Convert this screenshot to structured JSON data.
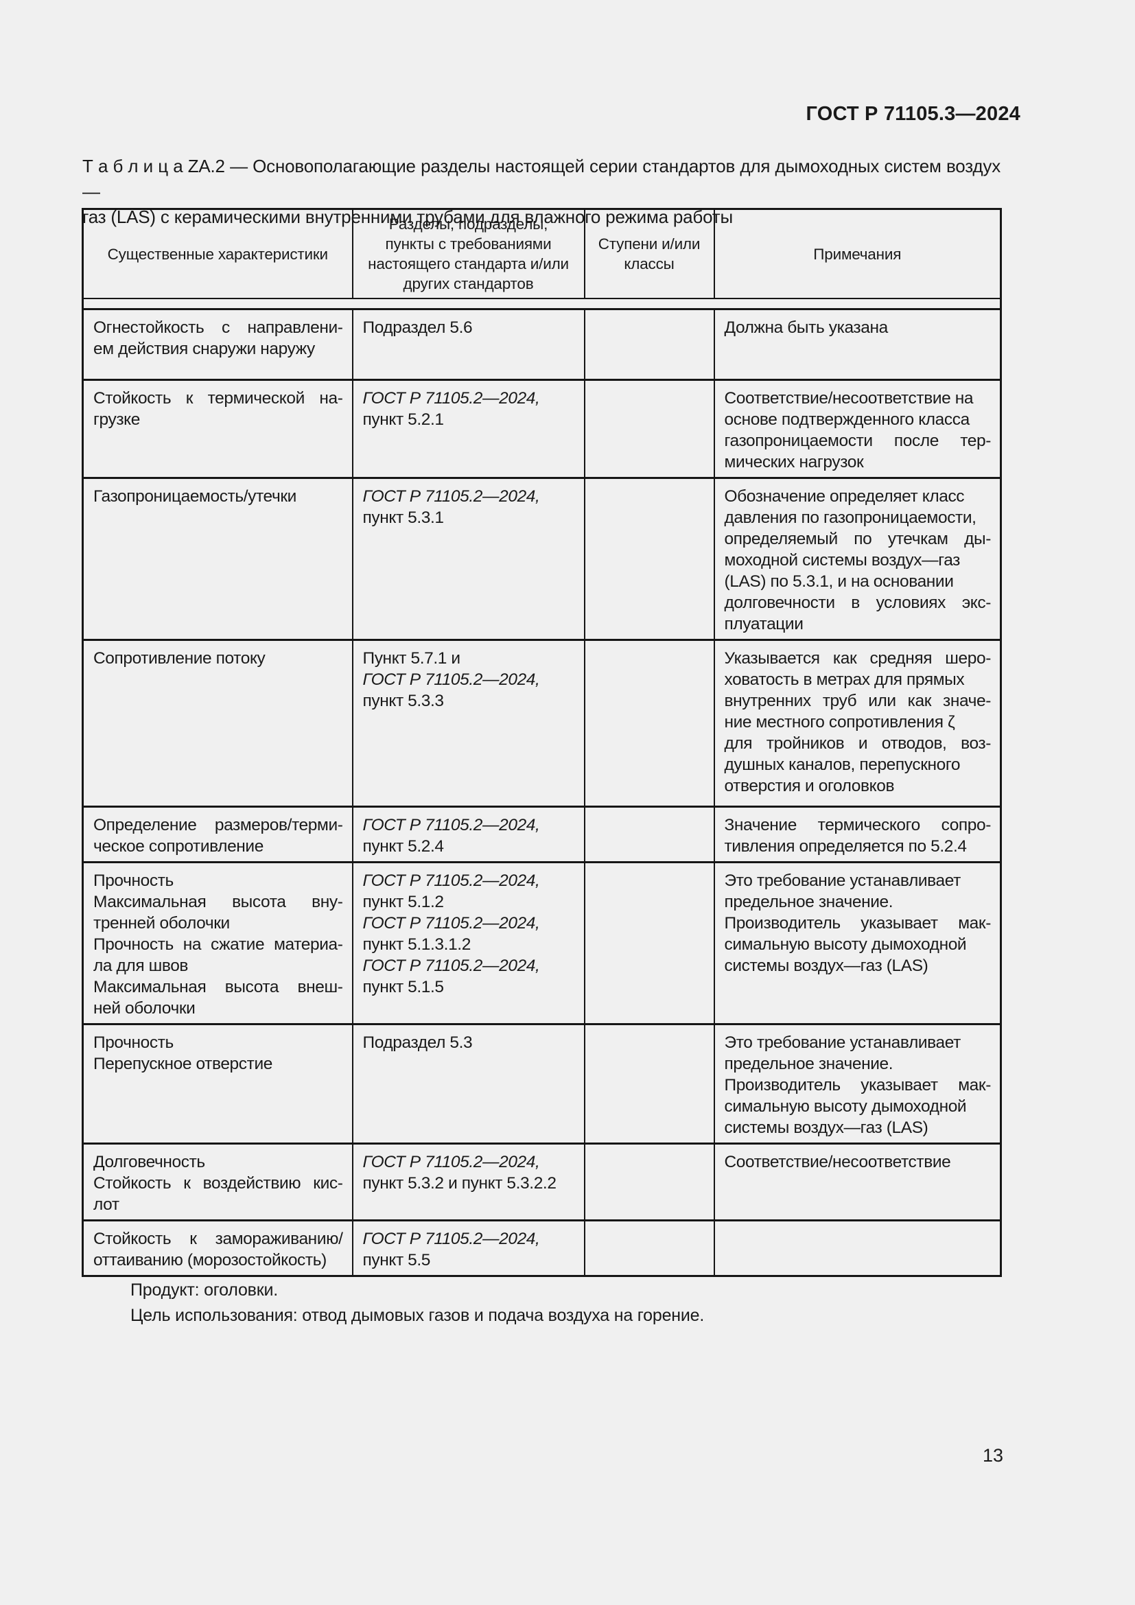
{
  "colors": {
    "page_background": "#f0f0f0",
    "ink": "#1a1a1a",
    "border": "#161616"
  },
  "page": {
    "doc_code": "ГОСТ Р 71105.3—2024",
    "page_number": "13",
    "footer_lines": [
      "Продукт: оголовки.",
      "Цель использования: отвод дымовых газов и подача воздуха на горение."
    ]
  },
  "table": {
    "caption_lines": [
      "Т а б л и ц а  ZA.2 — Основополагающие разделы настоящей серии стандартов для дымоходных систем воздух—",
      "газ (LAS) с керамическими внутренними трубами для влажного режима работы"
    ],
    "columns": [
      {
        "label": "Существенные характеристики"
      },
      {
        "label_lines": [
          "Разделы, подразделы,",
          "пункты с требованиями",
          "настоящего стандарта и/или",
          "других стандартов"
        ]
      },
      {
        "label_lines": [
          "Ступени и/или",
          "классы"
        ]
      },
      {
        "label": "Примечания"
      }
    ],
    "rows": [
      {
        "characteristics": [
          "Огнестойкость с направлени-",
          "ем действия снаружи наружу"
        ],
        "refs": [
          "Подраздел 5.6"
        ],
        "classes": "",
        "notes": [
          "Должна быть указана"
        ]
      },
      {
        "characteristics": [
          "Стойкость к термической на-",
          "грузке"
        ],
        "refs": [
          {
            "t": "ГОСТ Р 71105.2—2024,",
            "it": true
          },
          "пункт 5.2.1"
        ],
        "classes": "",
        "notes": [
          "Соответствие/несоответствие на",
          "основе подтвержденного класса",
          "газопроницаемости после тер-",
          "мических нагрузок"
        ]
      },
      {
        "characteristics": [
          "Газопроницаемость/утечки"
        ],
        "refs": [
          {
            "t": "ГОСТ Р 71105.2—2024,",
            "it": true
          },
          "пункт 5.3.1"
        ],
        "classes": "",
        "notes": [
          "Обозначение определяет класс",
          "давления по газопроницаемости,",
          "определяемый по утечкам ды-",
          "моходной системы воздух—газ",
          "(LAS) по 5.3.1, и на основании",
          "долговечности в условиях экс-",
          "плуатации"
        ]
      },
      {
        "characteristics": [
          "Сопротивление потоку"
        ],
        "refs": [
          "Пункт 5.7.1 и",
          {
            "t": "ГОСТ Р 71105.2—2024,",
            "it": true
          },
          "пункт 5.3.3"
        ],
        "classes": "",
        "notes": [
          "Указывается как средняя шеро-",
          "ховатость в метрах для прямых",
          "внутренних труб или как значе-",
          "ние местного сопротивления ζ",
          "для тройников и отводов, воз-",
          "душных каналов, перепускного",
          "отверстия и оголовков"
        ]
      },
      {
        "characteristics": [
          "Определение размеров/терми-",
          "ческое сопротивление"
        ],
        "refs": [
          {
            "t": "ГОСТ Р 71105.2—2024,",
            "it": true
          },
          "пункт 5.2.4"
        ],
        "classes": "",
        "notes": [
          "Значение термического сопро-",
          "тивления определяется по 5.2.4"
        ]
      },
      {
        "characteristics": [
          "Прочность",
          "Максимальная высота вну-",
          "тренней оболочки",
          "Прочность на сжатие материа-",
          "ла для швов",
          "Максимальная высота внеш-",
          "ней оболочки"
        ],
        "refs": [
          {
            "t": "ГОСТ Р 71105.2—2024,",
            "it": true
          },
          "пункт 5.1.2",
          {
            "t": "ГОСТ Р 71105.2—2024,",
            "it": true
          },
          "пункт 5.1.3.1.2",
          {
            "t": "ГОСТ Р 71105.2—2024,",
            "it": true
          },
          "пункт 5.1.5"
        ],
        "classes": "",
        "notes": [
          "Это требование устанавливает",
          "предельное значение.",
          "Производитель указывает мак-",
          "симальную высоту дымоходной",
          "системы воздух—газ (LAS)"
        ]
      },
      {
        "characteristics": [
          "Прочность",
          "Перепускное отверстие"
        ],
        "refs": [
          "Подраздел 5.3"
        ],
        "classes": "",
        "notes": [
          "Это требование устанавливает",
          "предельное значение.",
          "Производитель указывает мак-",
          "симальную высоту дымоходной",
          "системы воздух—газ (LAS)"
        ]
      },
      {
        "characteristics": [
          "Долговечность",
          "Стойкость к воздействию кис-",
          "лот"
        ],
        "refs": [
          {
            "t": "ГОСТ Р 71105.2—2024,",
            "it": true
          },
          "пункт 5.3.2 и пункт 5.3.2.2"
        ],
        "classes": "",
        "notes": [
          "Соответствие/несоответствие"
        ]
      },
      {
        "characteristics": [
          "Стойкость к замораживанию/",
          "оттаиванию (морозостойкость)"
        ],
        "refs": [
          {
            "t": "ГОСТ Р 71105.2—2024,",
            "it": true
          },
          "пункт 5.5"
        ],
        "classes": "",
        "notes": []
      }
    ]
  }
}
